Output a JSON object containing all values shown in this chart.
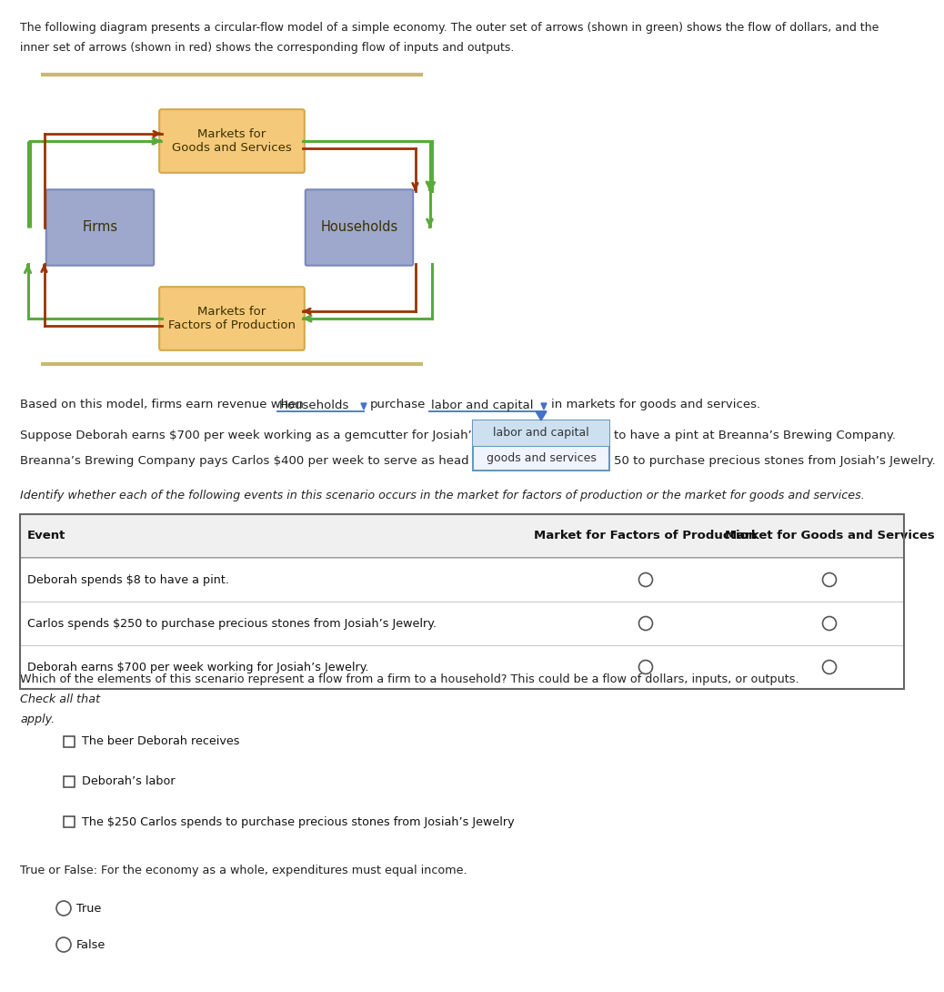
{
  "title_line1": "The following diagram presents a circular-flow model of a simple economy. The outer set of arrows (shown in green) shows the flow of dollars, and the",
  "title_line2": "inner set of arrows (shown in red) shows the corresponding flow of inputs and outputs.",
  "box_goods_color": "#f5c97a",
  "box_goods_edge": "#d4a84b",
  "box_blue_color": "#9da8cc",
  "box_blue_edge": "#7a88bb",
  "box_factors_color": "#f5c97a",
  "box_factors_edge": "#d4a84b",
  "separator_color": "#c8b870",
  "green_color": "#5aaa3a",
  "red_color": "#993300",
  "bg_color": "#ffffff",
  "text_color": "#222222",
  "dropdown_line_color": "#4472C4",
  "dropdown_arrow_color": "#4472C4",
  "popup_edge_color": "#6699bb",
  "popup_bg_color": "#f0f4ff",
  "popup_highlight": "#cce0f0",
  "question1_parts": [
    "Based on this model, firms earn revenue when ",
    "Households",
    " purchase ",
    "labor and capital",
    " in markets for goods and services."
  ],
  "suppose_line1a": "Suppose Deborah earns $700 per week working as a gemcutter for Josiah’s",
  "suppose_line1b": "to have a pint at Breanna’s Brewing Company.",
  "suppose_line2a": "Breanna’s Brewing Company pays Carlos $400 per week to serve as head b",
  "suppose_line2b": "50 to purchase precious stones from Josiah’s Jewelry.",
  "popup_item1": "labor and capital",
  "popup_item2": "goods and services",
  "identify_text": "Identify whether each of the following events in this scenario occurs in the market for factors of production or the market for goods and services.",
  "table_header_event": "Event",
  "table_header_factors": "Market for Factors of Production",
  "table_header_goods": "Market for Goods and Services",
  "table_rows": [
    "Deborah spends $8 to have a pint.",
    "Carlos spends $250 to purchase precious stones from Josiah’s Jewelry.",
    "Deborah earns $700 per week working for Josiah’s Jewelry."
  ],
  "which_text_normal": "Which of the elements of this scenario represent a flow from a firm to a household? This could be a flow of dollars, inputs, or outputs.",
  "which_text_italic": "Check all that",
  "apply_italic": "apply.",
  "checkboxes": [
    "The beer Deborah receives",
    "Deborah’s labor",
    "The $250 Carlos spends to purchase precious stones from Josiah’s Jewelry"
  ],
  "truefalse_text": "True or False: For the economy as a whole, expenditures must equal income.",
  "radio_options": [
    "True",
    "False"
  ]
}
